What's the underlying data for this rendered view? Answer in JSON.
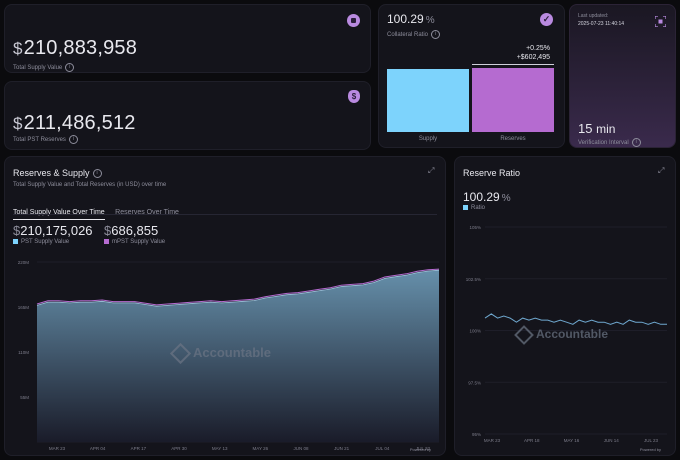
{
  "supply_card": {
    "currency": "$",
    "value": "210,883,958",
    "label": "Total Supply Value"
  },
  "reserves_card": {
    "currency": "$",
    "value": "211,486,512",
    "label": "Total PST Reserves"
  },
  "collateral_card": {
    "value": "100.29",
    "unit": "%",
    "label": "Collateral Ratio",
    "delta_pct": "+0.25%",
    "delta_usd": "+$602,495",
    "bar_supply_label": "Supply",
    "bar_reserves_label": "Reserves",
    "supply_value": 210883958,
    "reserves_value": 211486512
  },
  "verification_card": {
    "updated_label": "Last updated:",
    "updated_value": "2025-07-23 11:40:14",
    "interval_value": "15",
    "interval_unit": "min",
    "interval_label": "Verification Interval"
  },
  "reserves_supply": {
    "title": "Reserves & Supply",
    "subtitle": "Total Supply Value and Total Reserves (in USD) over time",
    "tabs": [
      "Total Supply Value Over Time",
      "Reserves Over Time"
    ],
    "active_tab": 0,
    "stat1_currency": "$",
    "stat1_value": "210,175,026",
    "stat1_label": "PST Supply Value",
    "stat2_currency": "$",
    "stat2_value": "686,855",
    "stat2_label": "mPST Supply Value",
    "watermark": "Accountable",
    "footer": "Powered by"
  },
  "reserve_ratio": {
    "title": "Reserve Ratio",
    "value": "100.29",
    "unit": "%",
    "legend": "Ratio",
    "watermark": "Accountable",
    "footer": "Powered by"
  },
  "colors": {
    "pst": "#7dd3fc",
    "mpst": "#b56bd0",
    "accent": "#9b59d0",
    "area_top": "#6a96b2",
    "ratio_line": "#6fa8cf"
  },
  "chart_data": [
    {
      "type": "area",
      "title": "Reserves & Supply",
      "x_ticks": [
        "MAR 23",
        "APR 04",
        "APR 17",
        "APR 30",
        "MAY 13",
        "MAY 26",
        "JUN 08",
        "JUN 21",
        "JUL 04",
        "JUL 23"
      ],
      "y_ticks": [
        "0",
        "55M",
        "110M",
        "165M",
        "220M"
      ],
      "ylim": [
        0,
        220
      ],
      "unit": "M",
      "series": [
        {
          "name": "PST Supply Value",
          "values": [
            167,
            171,
            171,
            170,
            171,
            171,
            172,
            170,
            170,
            170,
            168,
            166,
            167,
            168,
            169,
            170,
            171,
            170,
            171,
            172,
            173,
            176,
            178,
            180,
            181,
            183,
            185,
            187,
            190,
            191,
            192,
            195,
            200,
            202,
            204,
            207,
            209,
            210
          ]
        },
        {
          "name": "mPST Supply Value",
          "values": [
            1,
            1,
            1,
            1,
            1,
            1,
            1,
            1,
            1,
            1,
            1,
            1,
            1,
            1,
            1,
            1,
            1,
            1,
            1,
            1,
            1,
            1,
            1,
            1,
            1,
            1,
            1,
            1,
            1,
            1,
            1,
            1,
            1,
            1,
            1,
            1,
            1,
            0.7
          ]
        }
      ]
    },
    {
      "type": "line",
      "title": "Reserve Ratio",
      "x_ticks": [
        "MAR 23",
        "APR 18",
        "MAY 16",
        "JUN 14",
        "JUL 23"
      ],
      "y_ticks": [
        "95%",
        "97.5%",
        "100%",
        "102.5%",
        "105%"
      ],
      "ylim": [
        95,
        105
      ],
      "series": [
        {
          "name": "Ratio",
          "values": [
            100.6,
            100.8,
            100.6,
            100.7,
            100.6,
            100.4,
            100.6,
            100.5,
            100.6,
            100.5,
            100.5,
            100.4,
            100.5,
            100.4,
            100.3,
            100.5,
            100.4,
            100.5,
            100.4,
            100.4,
            100.3,
            100.4,
            100.3,
            100.5,
            100.4,
            100.4,
            100.3,
            100.4,
            100.3,
            100.3
          ]
        }
      ]
    }
  ]
}
